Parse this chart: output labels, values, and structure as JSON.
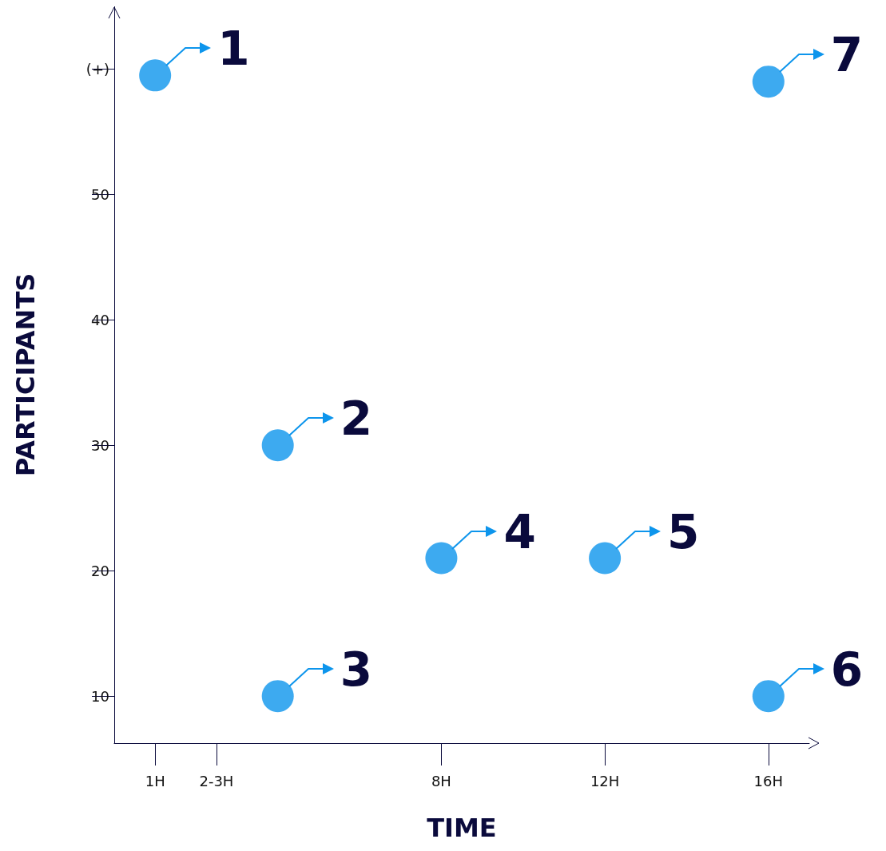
{
  "chart_data": {
    "type": "scatter",
    "xlabel": "TIME",
    "ylabel": "PARTICIPANTS",
    "x": [
      1,
      4,
      4,
      8,
      12,
      16,
      16
    ],
    "values": [
      59.5,
      30,
      10,
      21,
      21,
      10,
      59
    ],
    "annotations": [
      {
        "text": "1",
        "x": 1,
        "y": 59.5
      },
      {
        "text": "2",
        "x": 4,
        "y": 30
      },
      {
        "text": "3",
        "x": 4,
        "y": 10
      },
      {
        "text": "4",
        "x": 8,
        "y": 21
      },
      {
        "text": "5",
        "x": 12,
        "y": 21
      },
      {
        "text": "6",
        "x": 16,
        "y": 10
      },
      {
        "text": "7",
        "x": 16,
        "y": 59
      }
    ],
    "color": "#0d95ec",
    "marker": "circle",
    "grid": false,
    "xlim": [
      0,
      17
    ],
    "xticks": [
      {
        "value": 1,
        "label": "1H"
      },
      {
        "value": 2.5,
        "label": "2-3H"
      },
      {
        "value": 8,
        "label": "8H"
      },
      {
        "value": 12,
        "label": "12H"
      },
      {
        "value": 16,
        "label": "16H"
      }
    ],
    "ylim": [
      6.25,
      65
    ],
    "yticks": [
      10,
      20,
      30,
      40,
      50,
      {
        "value": 60,
        "label": "(+)"
      }
    ]
  }
}
